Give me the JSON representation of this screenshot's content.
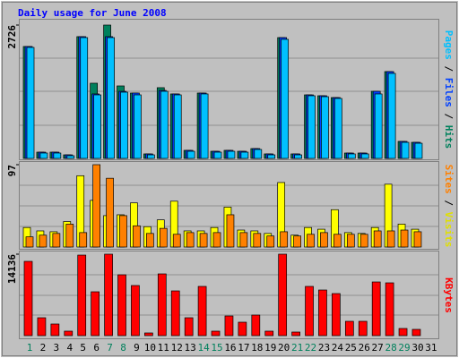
{
  "title": "Daily usage for June 2008",
  "chart_data": [
    {
      "type": "bar",
      "ylim": [
        0,
        2726
      ],
      "yticks": [
        2726
      ],
      "series": [
        {
          "name": "Hits",
          "color": "#00805c",
          "values": [
            2288,
            128,
            128,
            73,
            2489,
            1537,
            2726,
            1482,
            1336,
            92,
            1446,
            1318,
            165,
            1336,
            146,
            165,
            146,
            201,
            92,
            2470,
            92,
            1299,
            1281,
            1244,
            110,
            110,
            1372,
            1775,
            348,
            329,
            0
          ]
        },
        {
          "name": "Files",
          "color": "#0040ff",
          "values": [
            2288,
            128,
            128,
            73,
            2489,
            1318,
            2489,
            1372,
            1336,
            92,
            1390,
            1318,
            165,
            1336,
            146,
            165,
            146,
            201,
            92,
            2470,
            92,
            1299,
            1281,
            1244,
            110,
            110,
            1372,
            1775,
            348,
            329,
            0
          ]
        },
        {
          "name": "Pages",
          "color": "#00c0ff",
          "values": [
            2269,
            110,
            110,
            55,
            2470,
            1299,
            2470,
            1354,
            1299,
            73,
            1372,
            1299,
            146,
            1318,
            128,
            146,
            128,
            183,
            73,
            2434,
            73,
            1281,
            1262,
            1226,
            92,
            92,
            1318,
            1738,
            329,
            310,
            0
          ]
        }
      ]
    },
    {
      "type": "bar",
      "ylim": [
        0,
        97
      ],
      "yticks": [
        97
      ],
      "series": [
        {
          "name": "Visits",
          "color": "#ffff00",
          "values": [
            23,
            19,
            18,
            30,
            84,
            55,
            37,
            38,
            52,
            24,
            32,
            54,
            19,
            19,
            23,
            47,
            20,
            19,
            16,
            76,
            14,
            23,
            21,
            44,
            17,
            16,
            23,
            74,
            27,
            21,
            0
          ]
        },
        {
          "name": "Sites",
          "color": "#ff8000",
          "values": [
            12,
            14,
            16,
            27,
            17,
            97,
            81,
            37,
            25,
            16,
            22,
            15,
            17,
            16,
            17,
            38,
            17,
            16,
            13,
            18,
            13,
            15,
            17,
            15,
            15,
            15,
            19,
            19,
            20,
            18,
            0
          ]
        }
      ]
    },
    {
      "type": "bar",
      "ylim": [
        0,
        14136
      ],
      "yticks": [
        14136
      ],
      "categories": [
        "1",
        "2",
        "3",
        "4",
        "5",
        "6",
        "7",
        "8",
        "9",
        "10",
        "11",
        "12",
        "13",
        "14",
        "15",
        "16",
        "17",
        "18",
        "19",
        "20",
        "21",
        "22",
        "23",
        "24",
        "25",
        "26",
        "27",
        "28",
        "29",
        "30",
        "31"
      ],
      "weekends": [
        "1",
        "7",
        "8",
        "14",
        "15",
        "21",
        "22",
        "28",
        "29"
      ],
      "weekend_color": "#00805c",
      "series": [
        {
          "name": "KBytes",
          "color": "#ff0000",
          "values": [
            12890,
            3106,
            2019,
            777,
            13977,
            7610,
            14136,
            10561,
            8697,
            466,
            10716,
            7765,
            3106,
            8542,
            777,
            3417,
            2330,
            3572,
            777,
            14136,
            621,
            8542,
            7920,
            7299,
            2485,
            2485,
            9318,
            9163,
            1242,
            1087,
            0
          ]
        }
      ]
    }
  ]
}
